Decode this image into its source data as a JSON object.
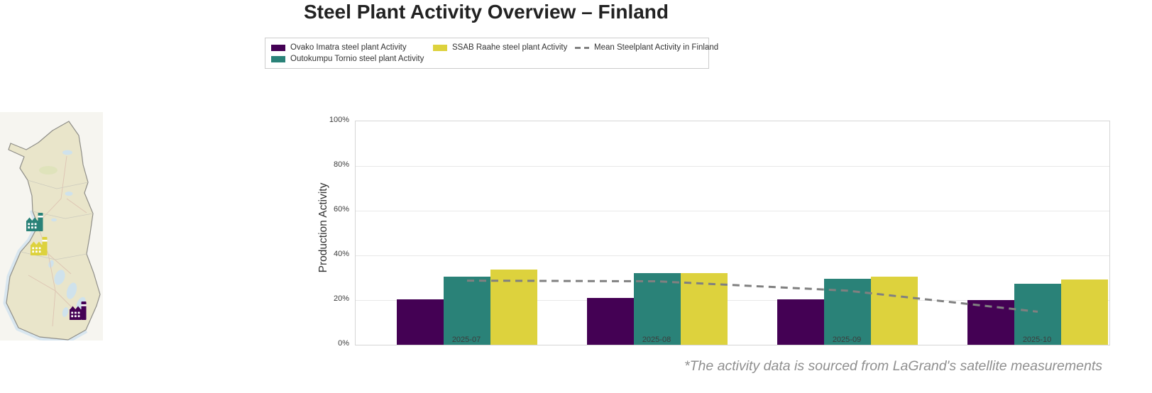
{
  "title": "Steel Plant Activity Overview – Finland",
  "legend": {
    "items": [
      {
        "label": "Ovako Imatra steel plant Activity",
        "color": "#440154",
        "type": "swatch"
      },
      {
        "label": "Outokumpu Tornio steel plant Activity",
        "color": "#2a8278",
        "type": "swatch"
      },
      {
        "label": "SSAB Raahe steel plant Activity",
        "color": "#ddd23d",
        "type": "swatch"
      },
      {
        "label": "Mean Steelplant Activity in Finland",
        "color": "#808080",
        "type": "dashed-line"
      }
    ]
  },
  "chart_data": {
    "type": "bar",
    "categories": [
      "2025-07",
      "2025-08",
      "2025-09",
      "2025-10"
    ],
    "series": [
      {
        "name": "Ovako Imatra steel plant Activity",
        "color": "#440154",
        "values": [
          20.4,
          20.8,
          20.4,
          20.1
        ]
      },
      {
        "name": "Outokumpu Tornio steel plant Activity",
        "color": "#2a8278",
        "values": [
          30.5,
          32.2,
          29.6,
          27.2
        ]
      },
      {
        "name": "SSAB Raahe steel plant Activity",
        "color": "#ddd23d",
        "values": [
          33.7,
          32.0,
          30.6,
          29.3
        ]
      }
    ],
    "mean_line": {
      "name": "Mean Steelplant Activity in Finland",
      "color": "#808080",
      "style": "dashed",
      "values": [
        28.7,
        28.4,
        24.2,
        14.8
      ]
    },
    "title": "Steel Plant Activity Overview – Finland",
    "xlabel": "",
    "ylabel": "Production Activity",
    "ylim": [
      0,
      100
    ],
    "yticks": [
      "0%",
      "20%",
      "40%",
      "60%",
      "80%",
      "100%"
    ],
    "grid": true,
    "legend_position": "top"
  },
  "map": {
    "region": "Finland",
    "plants": [
      {
        "name": "Outokumpu Tornio steel plant",
        "color": "#2a8278"
      },
      {
        "name": "SSAB Raahe steel plant",
        "color": "#ddd23d"
      },
      {
        "name": "Ovako Imatra steel plant",
        "color": "#440154"
      }
    ]
  },
  "footnote": "*The activity data is sourced from LaGrand's satellite measurements"
}
